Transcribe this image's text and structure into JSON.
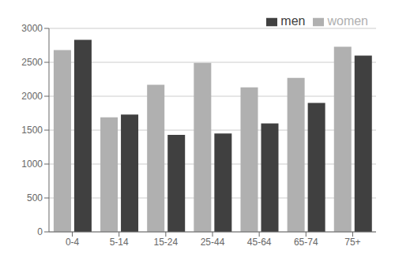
{
  "chart_data": {
    "type": "bar",
    "categories": [
      "0-4",
      "5-14",
      "15-24",
      "25-44",
      "45-64",
      "65-74",
      "75+"
    ],
    "series": [
      {
        "name": "women",
        "color": "#b0b0b0",
        "values": [
          2680,
          1690,
          2170,
          2490,
          2130,
          2270,
          2730
        ]
      },
      {
        "name": "men",
        "color": "#404040",
        "values": [
          2830,
          1730,
          1430,
          1450,
          1600,
          1900,
          2600
        ]
      }
    ],
    "ylim": [
      0,
      3000
    ],
    "yticks": [
      0,
      500,
      1000,
      1500,
      2000,
      2500,
      3000
    ],
    "grid": true,
    "legend": "upper right"
  }
}
